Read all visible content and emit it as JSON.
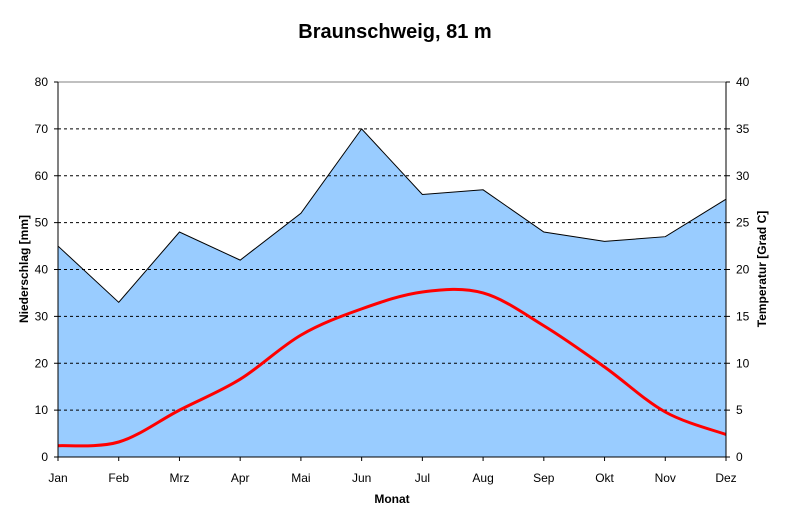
{
  "chart_data": {
    "type": "area",
    "title": "Braunschweig, 81 m",
    "xlabel": "Monat",
    "ylabel": "Niederschlag [mm]",
    "y2label": "Temperatur [Grad C]",
    "categories": [
      "Jan",
      "Feb",
      "Mrz",
      "Apr",
      "Mai",
      "Jun",
      "Jul",
      "Aug",
      "Sep",
      "Okt",
      "Nov",
      "Dez"
    ],
    "ylim": [
      0,
      80
    ],
    "yticks": [
      0,
      10,
      20,
      30,
      40,
      50,
      60,
      70,
      80
    ],
    "y2lim": [
      0,
      40
    ],
    "y2ticks": [
      0,
      5,
      10,
      15,
      20,
      25,
      30,
      35,
      40
    ],
    "grid": true,
    "series": [
      {
        "type": "area",
        "axis": "left",
        "values": [
          45,
          33,
          48,
          42,
          52,
          70,
          56,
          57,
          48,
          46,
          47,
          55
        ]
      },
      {
        "type": "line",
        "axis": "right",
        "values": [
          1.2,
          1.6,
          5.0,
          8.3,
          13.0,
          15.8,
          17.6,
          17.5,
          14.0,
          9.6,
          4.8,
          2.4
        ]
      }
    ],
    "colors": {
      "area_fill": "#99ccff",
      "area_stroke": "#000000",
      "line": "#ff0000",
      "grid": "#000000",
      "plot_border": "#808080"
    }
  }
}
